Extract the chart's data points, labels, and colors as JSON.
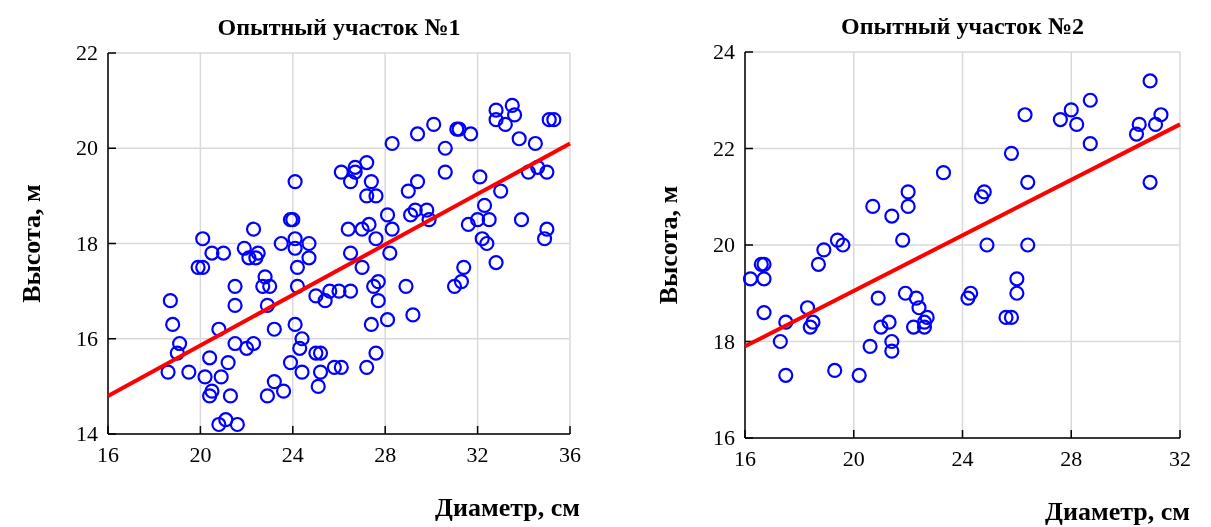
{
  "chart_data": [
    {
      "type": "scatter",
      "title": "Опытный участок №1",
      "xlabel": "Диаметр, см",
      "ylabel": "Высота, м",
      "xlim": [
        16,
        36
      ],
      "xticks": [
        16,
        20,
        24,
        28,
        32,
        36
      ],
      "ylim": [
        14,
        22
      ],
      "yticks": [
        14,
        16,
        18,
        20,
        22
      ],
      "grid": true,
      "marker": "circle",
      "series": [
        {
          "color": "#0000ff",
          "x": [
            18.6,
            18.7,
            18.8,
            19.0,
            19.1,
            19.5,
            19.9,
            20.1,
            20.1,
            20.2,
            20.4,
            20.4,
            20.5,
            20.5,
            20.8,
            20.8,
            20.9,
            21.0,
            21.1,
            21.2,
            21.3,
            21.5,
            21.5,
            21.5,
            21.6,
            21.9,
            22.0,
            22.1,
            22.3,
            22.3,
            22.4,
            22.5,
            22.7,
            22.8,
            22.9,
            22.9,
            23.0,
            23.2,
            23.2,
            23.5,
            23.6,
            23.9,
            23.9,
            24.0,
            24.1,
            24.1,
            24.1,
            24.1,
            24.2,
            24.2,
            24.3,
            24.4,
            24.4,
            24.7,
            24.7,
            25.0,
            25.0,
            25.1,
            25.2,
            25.2,
            25.4,
            25.6,
            25.8,
            26.0,
            26.1,
            26.1,
            26.4,
            26.5,
            26.5,
            26.5,
            26.7,
            26.7,
            27.0,
            27.0,
            27.2,
            27.2,
            27.2,
            27.3,
            27.4,
            27.4,
            27.5,
            27.6,
            27.6,
            27.6,
            27.7,
            27.7,
            28.1,
            28.1,
            28.2,
            28.3,
            28.3,
            28.9,
            29.0,
            29.1,
            29.2,
            29.3,
            29.4,
            29.4,
            29.8,
            29.9,
            30.1,
            30.6,
            30.6,
            31.0,
            31.1,
            31.2,
            31.3,
            31.4,
            31.6,
            31.7,
            32.0,
            32.1,
            32.2,
            32.3,
            32.4,
            32.5,
            32.8,
            33.0,
            32.8,
            32.8,
            33.2,
            33.5,
            33.6,
            33.8,
            33.9,
            34.2,
            34.5,
            34.6,
            34.9,
            35.0,
            35.1,
            35.0,
            35.3
          ],
          "values": [
            15.3,
            16.8,
            16.3,
            15.7,
            15.9,
            15.3,
            17.5,
            18.1,
            17.5,
            15.2,
            15.6,
            14.8,
            14.9,
            17.8,
            16.2,
            14.2,
            15.2,
            17.8,
            14.3,
            15.5,
            14.8,
            17.1,
            16.7,
            15.9,
            14.2,
            17.9,
            15.8,
            17.7,
            15.9,
            18.3,
            17.7,
            17.8,
            17.1,
            17.3,
            16.7,
            14.8,
            17.1,
            16.2,
            15.1,
            18.0,
            14.9,
            18.5,
            15.5,
            18.5,
            17.9,
            19.3,
            18.1,
            16.3,
            17.5,
            17.1,
            15.8,
            16.0,
            15.3,
            18.0,
            17.7,
            16.9,
            15.7,
            15.0,
            15.3,
            15.7,
            16.8,
            17.0,
            15.4,
            17.0,
            19.5,
            15.4,
            18.3,
            19.3,
            17.8,
            17.0,
            19.6,
            19.5,
            18.3,
            17.5,
            19.0,
            15.4,
            19.7,
            18.4,
            16.3,
            19.3,
            17.1,
            15.7,
            18.1,
            19.0,
            17.2,
            16.8,
            18.6,
            16.4,
            17.8,
            20.1,
            18.3,
            17.1,
            19.1,
            18.6,
            16.5,
            18.7,
            20.3,
            19.3,
            18.7,
            18.5,
            20.5,
            20.0,
            19.5,
            17.1,
            20.4,
            20.4,
            17.2,
            17.5,
            18.4,
            20.3,
            18.5,
            19.4,
            18.1,
            18.8,
            18.0,
            18.5,
            17.6,
            19.1,
            20.8,
            20.6,
            20.5,
            20.9,
            20.7,
            20.2,
            18.5,
            19.5,
            20.1,
            19.6,
            18.1,
            18.3,
            20.6,
            19.5,
            20.6
          ]
        },
        {
          "type": "line",
          "color": "#ff0000",
          "marker": "none",
          "x": [
            16,
            36
          ],
          "values": [
            14.8,
            20.1
          ]
        }
      ]
    },
    {
      "type": "scatter",
      "title": "Опытный участок №2",
      "xlabel": "Диаметр, см",
      "ylabel": "Высота, м",
      "xlim": [
        16,
        32
      ],
      "xticks": [
        16,
        20,
        24,
        28,
        32
      ],
      "ylim": [
        16,
        24
      ],
      "yticks": [
        16,
        18,
        20,
        22,
        24
      ],
      "grid": true,
      "marker": "circle",
      "series": [
        {
          "color": "#0000ff",
          "x": [
            16.2,
            16.6,
            16.7,
            16.7,
            16.7,
            17.3,
            17.5,
            17.5,
            18.3,
            18.4,
            18.5,
            18.7,
            18.9,
            19.3,
            19.4,
            19.6,
            20.2,
            20.6,
            20.7,
            20.9,
            21.0,
            21.3,
            21.4,
            21.4,
            21.4,
            21.8,
            21.9,
            22.0,
            22.0,
            22.2,
            22.3,
            22.4,
            22.6,
            22.6,
            22.7,
            23.3,
            24.2,
            24.3,
            24.7,
            24.8,
            24.9,
            25.6,
            25.8,
            25.8,
            26.0,
            26.0,
            26.3,
            26.4,
            26.4,
            27.6,
            28.0,
            28.2,
            28.7,
            28.7,
            30.4,
            30.5,
            30.9,
            30.9,
            31.1,
            31.3
          ],
          "values": [
            19.3,
            19.6,
            19.6,
            19.3,
            18.6,
            18.0,
            17.3,
            18.4,
            18.7,
            18.3,
            18.4,
            19.6,
            19.9,
            17.4,
            20.1,
            20.0,
            17.3,
            17.9,
            20.8,
            18.9,
            18.3,
            18.4,
            20.6,
            18.0,
            17.8,
            20.1,
            19.0,
            21.1,
            20.8,
            18.3,
            18.9,
            18.7,
            18.4,
            18.3,
            18.5,
            21.5,
            18.9,
            19.0,
            21.0,
            21.1,
            20.0,
            18.5,
            18.5,
            21.9,
            19.3,
            19.0,
            22.7,
            21.3,
            20.0,
            22.6,
            22.8,
            22.5,
            23.0,
            22.1,
            22.3,
            22.5,
            23.4,
            21.3,
            22.5,
            22.7
          ]
        },
        {
          "type": "line",
          "color": "#ff0000",
          "marker": "none",
          "x": [
            16,
            32
          ],
          "values": [
            17.9,
            22.5
          ]
        }
      ]
    }
  ]
}
